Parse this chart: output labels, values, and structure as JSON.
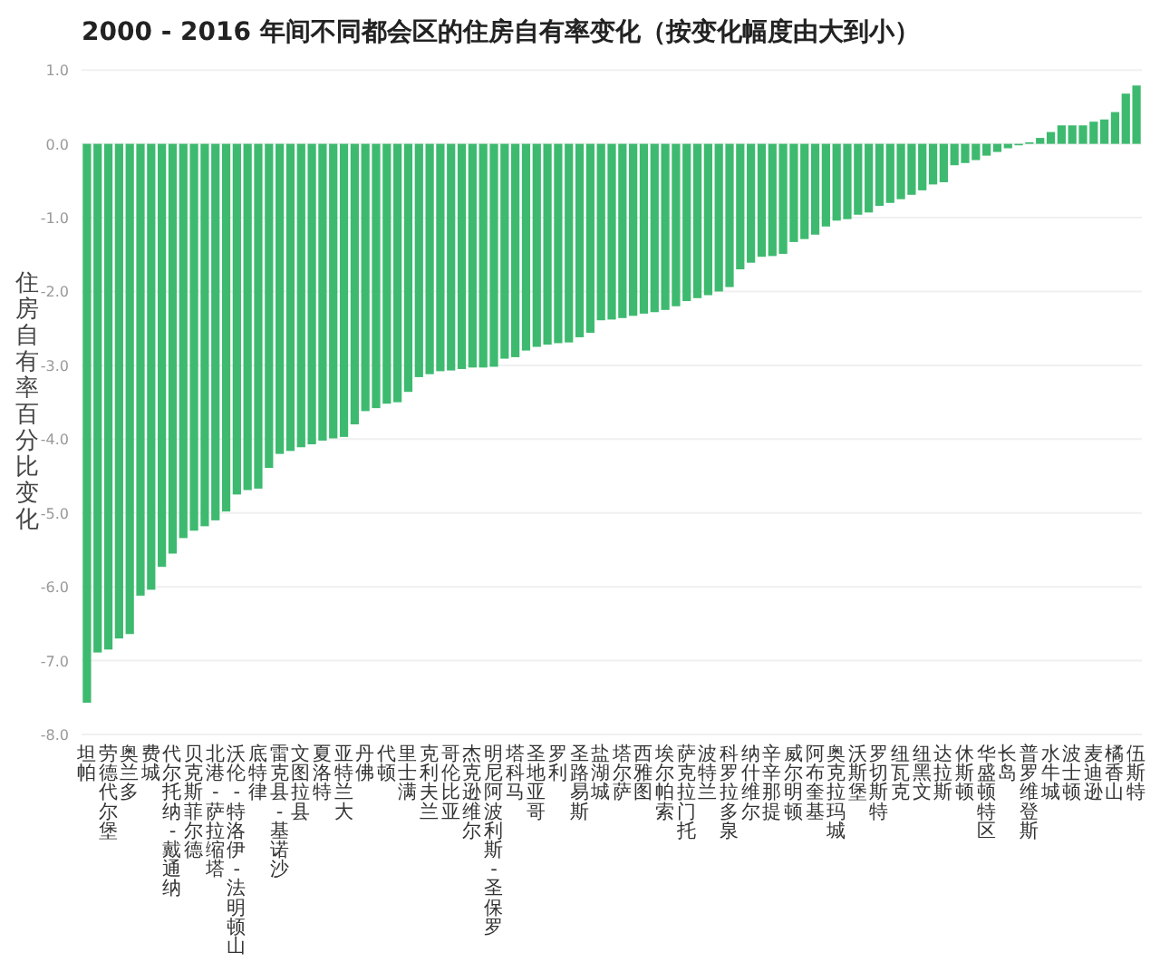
{
  "chart_data": {
    "type": "bar",
    "title": "2000 - 2016 年间不同都会区的住房自有率变化（按变化幅度由大到小）",
    "ylabel": "住房自有率百分比变化",
    "color": "#3dba6f",
    "categories": [
      "坦帕",
      null,
      "劳德代尔堡",
      null,
      "奥兰多",
      null,
      "费城",
      null,
      "代尔托纳-戴通纳",
      null,
      "贝克斯菲尔德",
      null,
      "北港-萨拉缩塔",
      null,
      "沃伦-特洛伊-法明顿山",
      null,
      "底特律",
      null,
      "雷克县-基诺沙",
      null,
      "文图拉县",
      null,
      "夏洛特",
      null,
      "亚特兰大",
      null,
      "丹佛",
      null,
      "代顿",
      null,
      "里士满",
      null,
      "克利夫兰",
      null,
      "哥伦比亚",
      null,
      "杰克逊维尔",
      null,
      "明尼阿波利斯-圣保罗",
      null,
      "塔科马",
      null,
      "圣地亚哥",
      null,
      "罗利",
      null,
      "圣路易斯",
      null,
      "盐湖城",
      null,
      "塔尔萨",
      null,
      "西雅图",
      null,
      "埃尔帕索",
      null,
      "萨克拉门托",
      null,
      "波特兰",
      null,
      "科罗拉多泉",
      null,
      "纳什维尔",
      null,
      "辛辛那提",
      null,
      "威尔明顿",
      null,
      "阿布奎基",
      null,
      "奥克拉玛城",
      null,
      "沃斯堡",
      null,
      "罗切斯特",
      null,
      "纽瓦克",
      null,
      "纽黑文",
      null,
      "达拉斯",
      null,
      "休斯顿",
      null,
      "华盛顿特区",
      null,
      "长岛",
      null,
      "普罗维登斯",
      null,
      "水牛城",
      null,
      "波士顿",
      null,
      "麦迪逊",
      null,
      "橘香山",
      null,
      "伍斯特"
    ],
    "values": [
      -7.57,
      -6.89,
      -6.85,
      -6.7,
      -6.64,
      -6.12,
      -6.04,
      -5.73,
      -5.55,
      -5.34,
      -5.24,
      -5.18,
      -5.1,
      -4.98,
      -4.75,
      -4.69,
      -4.67,
      -4.39,
      -4.2,
      -4.16,
      -4.11,
      -4.07,
      -4.02,
      -3.99,
      -3.97,
      -3.8,
      -3.62,
      -3.58,
      -3.52,
      -3.5,
      -3.36,
      -3.16,
      -3.12,
      -3.08,
      -3.07,
      -3.05,
      -3.03,
      -3.03,
      -3.02,
      -2.91,
      -2.89,
      -2.8,
      -2.75,
      -2.72,
      -2.7,
      -2.69,
      -2.62,
      -2.56,
      -2.39,
      -2.38,
      -2.36,
      -2.33,
      -2.3,
      -2.28,
      -2.25,
      -2.2,
      -2.13,
      -2.09,
      -2.05,
      -2.0,
      -1.94,
      -1.7,
      -1.61,
      -1.53,
      -1.52,
      -1.49,
      -1.33,
      -1.29,
      -1.23,
      -1.12,
      -1.04,
      -1.02,
      -0.96,
      -0.93,
      -0.84,
      -0.8,
      -0.75,
      -0.69,
      -0.63,
      -0.55,
      -0.52,
      -0.29,
      -0.26,
      -0.22,
      -0.16,
      -0.11,
      -0.06,
      -0.02,
      0.02,
      0.08,
      0.16,
      0.25,
      0.25,
      0.25,
      0.3,
      0.33,
      0.43,
      0.68,
      0.79
    ],
    "ylim": [
      -8,
      1
    ],
    "yticks": [
      {
        "value": 1,
        "label": "1.0"
      },
      {
        "value": 0,
        "label": "0.0"
      },
      {
        "value": -1,
        "label": "-1.0"
      },
      {
        "value": -2,
        "label": "-2.0"
      },
      {
        "value": -3,
        "label": "-3.0"
      },
      {
        "value": -4,
        "label": "-4.0"
      },
      {
        "value": -5,
        "label": "-5.0"
      },
      {
        "value": -6,
        "label": "-6.0"
      },
      {
        "value": -7,
        "label": "-7.0"
      },
      {
        "value": -8,
        "label": "-8.0"
      }
    ],
    "grid": "y"
  }
}
